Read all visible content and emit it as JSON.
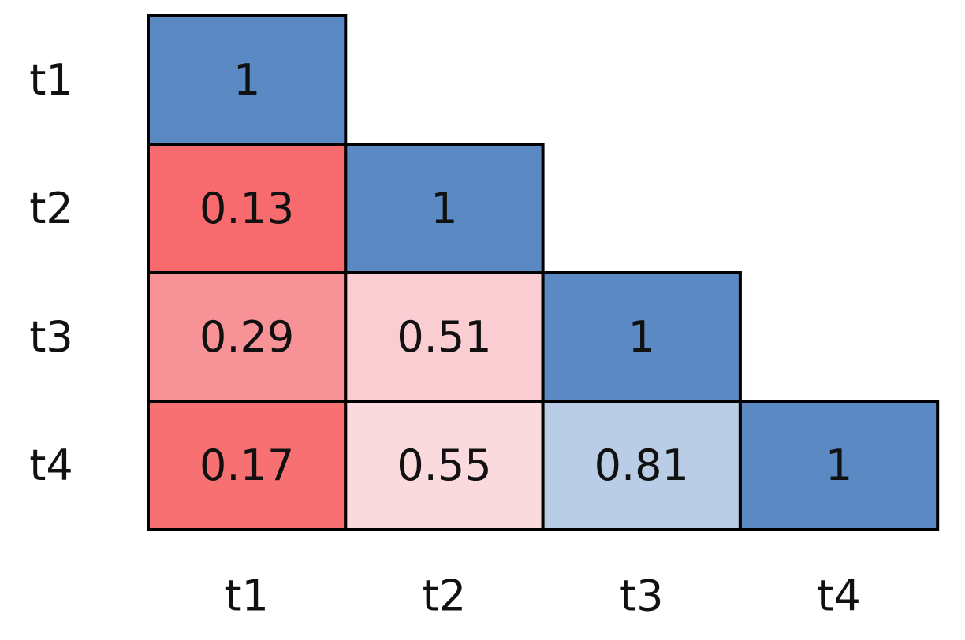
{
  "chart_data": {
    "type": "heatmap",
    "rows": [
      "t1",
      "t2",
      "t3",
      "t4"
    ],
    "columns": [
      "t1",
      "t2",
      "t3",
      "t4"
    ],
    "values": [
      [
        1,
        null,
        null,
        null
      ],
      [
        0.13,
        1,
        null,
        null
      ],
      [
        0.29,
        0.51,
        1,
        null
      ],
      [
        0.17,
        0.55,
        0.81,
        1
      ]
    ],
    "colors": [
      [
        "#5a89c4",
        null,
        null,
        null
      ],
      [
        "#f76b6e",
        "#5a89c4",
        null,
        null
      ],
      [
        "#f79396",
        "#f9cdd1",
        "#5a89c4",
        null
      ],
      [
        "#f77173",
        "#fbdade",
        "#b9cde6",
        "#5a89c4"
      ]
    ]
  }
}
